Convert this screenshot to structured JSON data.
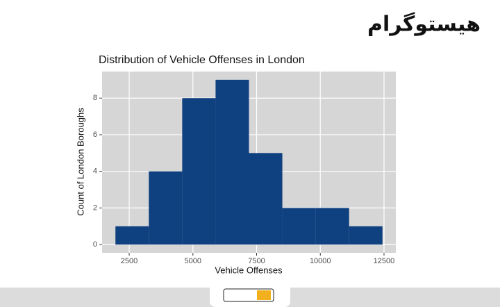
{
  "page_title": "هیستوگرام",
  "chart_data": {
    "type": "histogram",
    "title": "Distribution of Vehicle Offenses in London",
    "x_label": "Vehicle Offenses",
    "y_label": "Count of London Boroughs",
    "bins": [
      1960,
      3270,
      4580,
      5890,
      7200,
      8510,
      9820,
      11130,
      12440
    ],
    "values": [
      1,
      4,
      8,
      9,
      5,
      2,
      2,
      1
    ],
    "color": "#0f4080",
    "xlim": [
      1436,
      12964
    ],
    "xticks": [
      2500,
      5000,
      7500,
      10000,
      12500
    ],
    "ylim": [
      -0.45,
      9.45
    ],
    "yticks": [
      0,
      2,
      4,
      6,
      8
    ],
    "grid": true
  }
}
